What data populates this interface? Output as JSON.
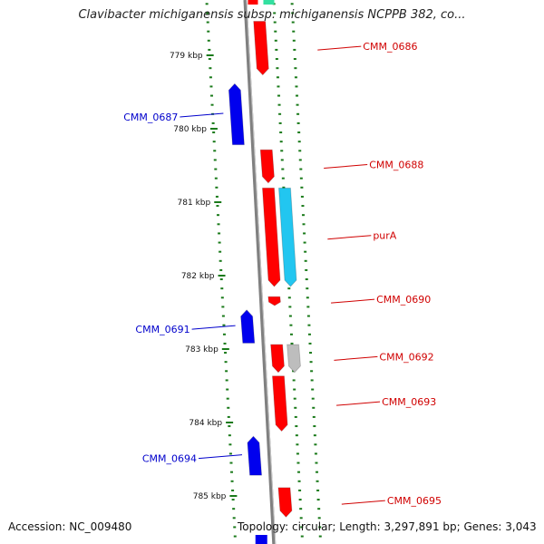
{
  "title": "Clavibacter michiganensis subsp. michiganensis NCPPB 382, co...",
  "footer": {
    "accession": "Accession: NC_009480",
    "stats": "Topology: circular; Length: 3,297,891 bp; Genes: 3,043"
  },
  "colors": {
    "backbone": "#808080",
    "ticks": "#1a7a1a",
    "forward_gene": "#ff0000",
    "reverse_gene": "#0000ee",
    "rna_gene": "#22c6f0",
    "other_gene": "#bdbdbd",
    "top_gene": "#33e0a0",
    "label_forward": "#d00000",
    "label_reverse": "#0000cc"
  },
  "scale": {
    "unit": "kbp",
    "ticks": [
      {
        "label": "779 kbp",
        "kbp": 779
      },
      {
        "label": "780 kbp",
        "kbp": 780
      },
      {
        "label": "781 kbp",
        "kbp": 781
      },
      {
        "label": "782 kbp",
        "kbp": 782
      },
      {
        "label": "783 kbp",
        "kbp": 783
      },
      {
        "label": "784 kbp",
        "kbp": 784
      },
      {
        "label": "785 kbp",
        "kbp": 785
      }
    ]
  },
  "genes": [
    {
      "name": "CMM_0686",
      "strand": "forward",
      "type": "cds",
      "start_kbp": 778.55,
      "end_kbp": 779.28
    },
    {
      "name": "CMM_0687",
      "strand": "reverse",
      "type": "cds",
      "start_kbp": 779.4,
      "end_kbp": 780.23
    },
    {
      "name": "CMM_0688",
      "strand": "forward",
      "type": "cds",
      "start_kbp": 780.3,
      "end_kbp": 780.75
    },
    {
      "name": "purA",
      "strand": "forward",
      "type": "rna",
      "start_kbp": 780.82,
      "end_kbp": 782.16
    },
    {
      "name": "",
      "strand": "forward",
      "type": "cds",
      "start_kbp": 780.82,
      "end_kbp": 782.16
    },
    {
      "name": "CMM_0690",
      "strand": "forward",
      "type": "cds",
      "start_kbp": 782.3,
      "end_kbp": 782.42
    },
    {
      "name": "CMM_0691",
      "strand": "reverse",
      "type": "cds",
      "start_kbp": 782.48,
      "end_kbp": 782.93
    },
    {
      "name": "CMM_0692",
      "strand": "forward",
      "type": "other",
      "start_kbp": 782.95,
      "end_kbp": 783.33
    },
    {
      "name": "",
      "strand": "forward",
      "type": "cds",
      "start_kbp": 782.95,
      "end_kbp": 783.33
    },
    {
      "name": "CMM_0693",
      "strand": "forward",
      "type": "cds",
      "start_kbp": 783.38,
      "end_kbp": 784.13
    },
    {
      "name": "CMM_0694",
      "strand": "reverse",
      "type": "cds",
      "start_kbp": 784.2,
      "end_kbp": 784.73
    },
    {
      "name": "CMM_0695",
      "strand": "forward",
      "type": "cds",
      "start_kbp": 784.9,
      "end_kbp": 785.3
    }
  ]
}
